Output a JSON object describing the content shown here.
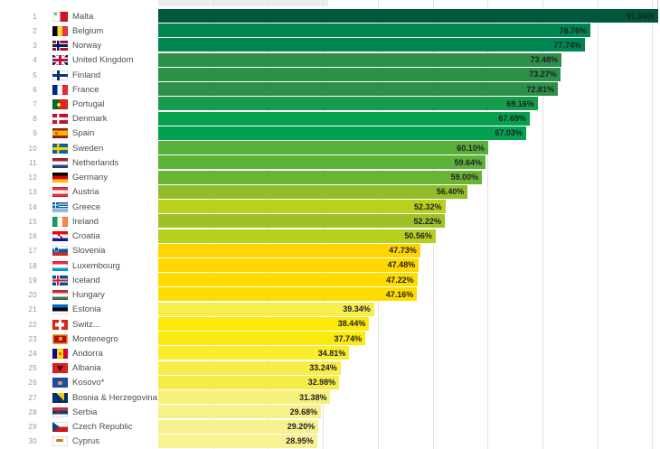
{
  "page": {
    "background": "#ffffff",
    "grid_color": "#e3e3e3",
    "value_label_color": "#1e1e28",
    "rank_color": "#979797",
    "country_color": "#4d4d4d"
  },
  "chart_data": {
    "type": "bar",
    "orientation": "horizontal",
    "title": "",
    "xlabel": "",
    "ylabel": "",
    "unit": "%",
    "xlim": [
      0,
      100
    ],
    "gridlines_pct": [
      10,
      20,
      30,
      40,
      50,
      60,
      70,
      80,
      90
    ],
    "grid_on": true,
    "legend": "none",
    "rows": [
      {
        "rank": 1,
        "country": "Malta",
        "value": 91.04,
        "label": "91.04%",
        "color": "#00573E",
        "flag": "malta-flag-icon"
      },
      {
        "rank": 2,
        "country": "Belgium",
        "value": 78.76,
        "label": "78.76%",
        "color": "#008751",
        "flag": "belgium-flag-icon"
      },
      {
        "rank": 3,
        "country": "Norway",
        "value": 77.74,
        "label": "77.74%",
        "color": "#008751",
        "flag": "norway-flag-icon"
      },
      {
        "rank": 4,
        "country": "United Kingdom",
        "value": 73.48,
        "label": "73.48%",
        "color": "#2D9048",
        "flag": "united-kingdom-flag-icon"
      },
      {
        "rank": 5,
        "country": "Finland",
        "value": 73.27,
        "label": "73.27%",
        "color": "#2D9048",
        "flag": "finland-flag-icon"
      },
      {
        "rank": 6,
        "country": "France",
        "value": 72.81,
        "label": "72.81%",
        "color": "#2D9048",
        "flag": "france-flag-icon"
      },
      {
        "rank": 7,
        "country": "Portugal",
        "value": 69.16,
        "label": "69.16%",
        "color": "#169C4A",
        "flag": "portugal-flag-icon"
      },
      {
        "rank": 8,
        "country": "Denmark",
        "value": 67.69,
        "label": "67.69%",
        "color": "#07A04C",
        "flag": "denmark-flag-icon"
      },
      {
        "rank": 9,
        "country": "Spain",
        "value": 67.03,
        "label": "67.03%",
        "color": "#00A24F",
        "flag": "spain-flag-icon"
      },
      {
        "rank": 10,
        "country": "Sweden",
        "value": 60.1,
        "label": "60.10%",
        "color": "#57B03A",
        "flag": "sweden-flag-icon"
      },
      {
        "rank": 11,
        "country": "Netherlands",
        "value": 59.64,
        "label": "59.64%",
        "color": "#5DB239",
        "flag": "netherlands-flag-icon"
      },
      {
        "rank": 12,
        "country": "Germany",
        "value": 59.0,
        "label": "59.00%",
        "color": "#6AB434",
        "flag": "germany-flag-icon"
      },
      {
        "rank": 13,
        "country": "Austria",
        "value": 56.4,
        "label": "56.40%",
        "color": "#90BE2B",
        "flag": "austria-flag-icon"
      },
      {
        "rank": 14,
        "country": "Greece",
        "value": 52.32,
        "label": "52.32%",
        "color": "#B9D11C",
        "flag": "greece-flag-icon"
      },
      {
        "rank": 15,
        "country": "Ireland",
        "value": 52.22,
        "label": "52.22%",
        "color": "#9DC227",
        "flag": "ireland-flag-icon"
      },
      {
        "rank": 16,
        "country": "Croatia",
        "value": 50.56,
        "label": "50.56%",
        "color": "#B6D01E",
        "flag": "croatia-flag-icon"
      },
      {
        "rank": 17,
        "country": "Slovenia",
        "value": 47.73,
        "label": "47.73%",
        "color": "#FFD501",
        "flag": "slovenia-flag-icon"
      },
      {
        "rank": 18,
        "country": "Luxembourg",
        "value": 47.48,
        "label": "47.48%",
        "color": "#FFD801",
        "flag": "luxembourg-flag-icon"
      },
      {
        "rank": 19,
        "country": "Iceland",
        "value": 47.22,
        "label": "47.22%",
        "color": "#FFDB00",
        "flag": "iceland-flag-icon"
      },
      {
        "rank": 20,
        "country": "Hungary",
        "value": 47.16,
        "label": "47.16%",
        "color": "#FFDC00",
        "flag": "hungary-flag-icon"
      },
      {
        "rank": 21,
        "country": "Estonia",
        "value": 39.34,
        "label": "39.34%",
        "color": "#F6EE4D",
        "flag": "estonia-flag-icon"
      },
      {
        "rank": 22,
        "country": "Switz...",
        "value": 38.44,
        "label": "38.44%",
        "color": "#FDEA0B",
        "flag": "switzerland-flag-icon"
      },
      {
        "rank": 23,
        "country": "Montenegro",
        "value": 37.74,
        "label": "37.74%",
        "color": "#FCE90D",
        "flag": "montenegro-flag-icon"
      },
      {
        "rank": 24,
        "country": "Andorra",
        "value": 34.81,
        "label": "34.81%",
        "color": "#FAED2F",
        "flag": "andorra-flag-icon"
      },
      {
        "rank": 25,
        "country": "Albania",
        "value": 33.24,
        "label": "33.24%",
        "color": "#F7EE49",
        "flag": "albania-flag-icon"
      },
      {
        "rank": 26,
        "country": "Kosovo*",
        "value": 32.98,
        "label": "32.98%",
        "color": "#F6EC47",
        "flag": "kosovo-flag-icon"
      },
      {
        "rank": 27,
        "country": "Bosnia & Herzegovina",
        "value": 31.38,
        "label": "31.38%",
        "color": "#F6F07E",
        "flag": "bosnia-herzegovina-flag-icon"
      },
      {
        "rank": 28,
        "country": "Serbia",
        "value": 29.68,
        "label": "29.68%",
        "color": "#F7F189",
        "flag": "serbia-flag-icon"
      },
      {
        "rank": 29,
        "country": "Czech Republic",
        "value": 29.2,
        "label": "29.20%",
        "color": "#F7F28E",
        "flag": "czech-republic-flag-icon"
      },
      {
        "rank": 30,
        "country": "Cyprus",
        "value": 28.95,
        "label": "28.95%",
        "color": "#F8F292",
        "flag": "cyprus-flag-icon"
      }
    ]
  }
}
